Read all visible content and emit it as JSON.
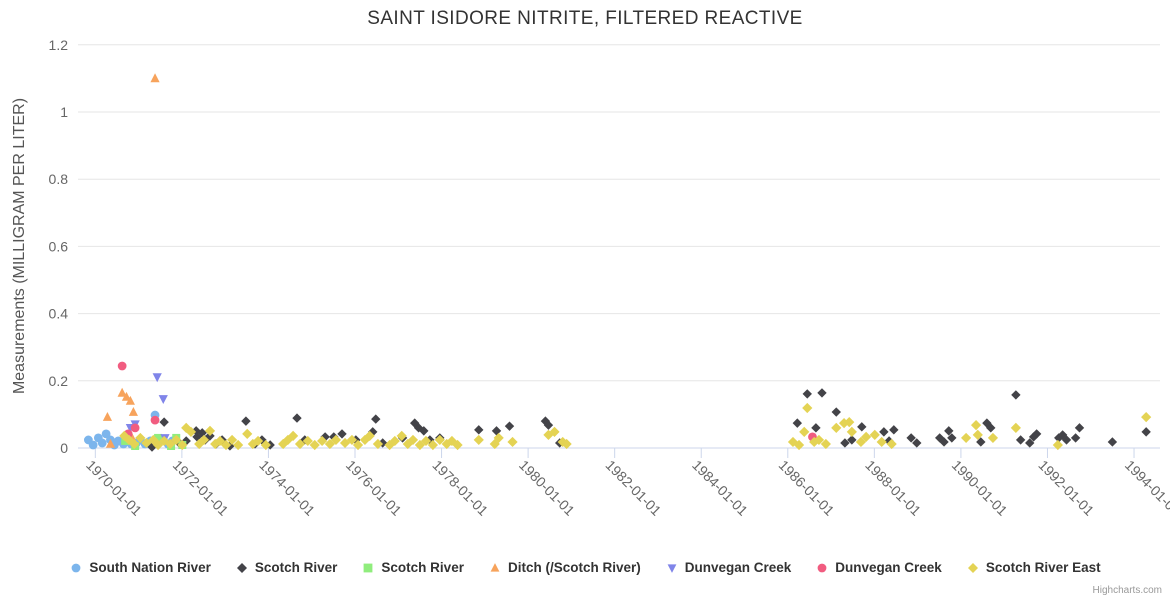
{
  "title": "SAINT ISIDORE NITRITE, FILTERED REACTIVE",
  "credits": "Highcharts.com",
  "y_axis": {
    "title": "Measurements (MILLIGRAM PER LITER)",
    "tick_labels": [
      "0",
      "0.2",
      "0.4",
      "0.6",
      "0.8",
      "1",
      "1.2"
    ],
    "tick_values": [
      0,
      0.2,
      0.4,
      0.6,
      0.8,
      1,
      1.2
    ],
    "min": 0,
    "max": 1.2
  },
  "x_axis": {
    "tick_labels": [
      "1970-01-01",
      "1972-01-01",
      "1974-01-01",
      "1976-01-01",
      "1978-01-01",
      "1980-01-01",
      "1982-01-01",
      "1984-01-01",
      "1986-01-01",
      "1988-01-01",
      "1990-01-01",
      "1992-01-01",
      "1994-01-01"
    ],
    "tick_years": [
      1970,
      1972,
      1974,
      1976,
      1978,
      1980,
      1982,
      1984,
      1986,
      1988,
      1990,
      1992,
      1994
    ]
  },
  "colors": {
    "axis_line": "#ccd6eb",
    "grid_line": "#e6e6e6",
    "tick_label": "#666666",
    "title_text": "#333333"
  },
  "legend": {
    "items": [
      {
        "label": "South Nation River",
        "marker": "circle",
        "color": "#7cb5ec"
      },
      {
        "label": "Scotch River",
        "marker": "diamond",
        "color": "#434348"
      },
      {
        "label": "Scotch River",
        "marker": "square",
        "color": "#90ed7d"
      },
      {
        "label": "Ditch (/Scotch River)",
        "marker": "triangle",
        "color": "#f7a35c"
      },
      {
        "label": "Dunvegan Creek",
        "marker": "triangle-down",
        "color": "#8085e9"
      },
      {
        "label": "Dunvegan Creek",
        "marker": "circle",
        "color": "#f15c80"
      },
      {
        "label": "Scotch River East",
        "marker": "diamond",
        "color": "#e4d354"
      }
    ]
  },
  "chart_data": {
    "type": "scatter",
    "title": "SAINT ISIDORE NITRITE, FILTERED REACTIVE",
    "xlabel": "",
    "ylabel": "Measurements (MILLIGRAM PER LITER)",
    "x_unit": "decimal_year",
    "xlim": [
      1969.6,
      1994.6
    ],
    "ylim": [
      0,
      1.2
    ],
    "grid": "horizontal",
    "legend_position": "bottom",
    "series": [
      {
        "name": "South Nation River",
        "marker": "circle",
        "color": "#7cb5ec",
        "size": 4.4,
        "points": [
          [
            1969.84,
            0.024
          ],
          [
            1969.95,
            0.009
          ],
          [
            1970.07,
            0.03
          ],
          [
            1970.16,
            0.015
          ],
          [
            1970.25,
            0.042
          ],
          [
            1970.35,
            0.024
          ],
          [
            1970.44,
            0.009
          ],
          [
            1970.53,
            0.021
          ],
          [
            1970.65,
            0.012
          ],
          [
            1970.74,
            0.027
          ],
          [
            1970.83,
            0.012
          ],
          [
            1970.95,
            0.015
          ],
          [
            1971.04,
            0.024
          ],
          [
            1971.15,
            0.012
          ],
          [
            1971.27,
            0.021
          ],
          [
            1971.38,
            0.098
          ],
          [
            1971.45,
            0.015
          ],
          [
            1971.57,
            0.024
          ],
          [
            1971.68,
            0.012
          ],
          [
            1971.78,
            0.021
          ]
        ]
      },
      {
        "name": "Scotch River",
        "marker": "diamond",
        "color": "#434348",
        "size": 4.1,
        "points": [
          [
            1971.31,
            0.003
          ],
          [
            1971.59,
            0.077
          ],
          [
            1971.96,
            0.012
          ],
          [
            1972.1,
            0.021
          ],
          [
            1972.33,
            0.051
          ],
          [
            1972.35,
            0.033
          ],
          [
            1972.47,
            0.045
          ],
          [
            1972.54,
            0.024
          ],
          [
            1972.65,
            0.036
          ],
          [
            1972.79,
            0.012
          ],
          [
            1972.93,
            0.024
          ],
          [
            1973.11,
            0.006
          ],
          [
            1973.48,
            0.08
          ],
          [
            1973.69,
            0.012
          ],
          [
            1973.85,
            0.024
          ],
          [
            1974.04,
            0.009
          ],
          [
            1974.66,
            0.089
          ],
          [
            1974.84,
            0.024
          ],
          [
            1975.31,
            0.033
          ],
          [
            1975.51,
            0.033
          ],
          [
            1975.7,
            0.042
          ],
          [
            1976.02,
            0.024
          ],
          [
            1976.41,
            0.048
          ],
          [
            1976.48,
            0.086
          ],
          [
            1976.64,
            0.015
          ],
          [
            1977.1,
            0.03
          ],
          [
            1977.38,
            0.074
          ],
          [
            1977.47,
            0.06
          ],
          [
            1977.59,
            0.051
          ],
          [
            1977.73,
            0.024
          ],
          [
            1977.96,
            0.03
          ],
          [
            1978.86,
            0.054
          ],
          [
            1979.27,
            0.051
          ],
          [
            1979.57,
            0.065
          ],
          [
            1980.4,
            0.08
          ],
          [
            1980.47,
            0.068
          ],
          [
            1980.73,
            0.015
          ],
          [
            1986.22,
            0.074
          ],
          [
            1986.45,
            0.161
          ],
          [
            1986.65,
            0.06
          ],
          [
            1986.79,
            0.164
          ],
          [
            1987.12,
            0.107
          ],
          [
            1987.32,
            0.015
          ],
          [
            1987.48,
            0.024
          ],
          [
            1987.71,
            0.063
          ],
          [
            1988.22,
            0.048
          ],
          [
            1988.34,
            0.021
          ],
          [
            1988.45,
            0.054
          ],
          [
            1988.85,
            0.03
          ],
          [
            1988.98,
            0.015
          ],
          [
            1989.51,
            0.03
          ],
          [
            1989.61,
            0.018
          ],
          [
            1989.72,
            0.051
          ],
          [
            1989.79,
            0.03
          ],
          [
            1990.46,
            0.018
          ],
          [
            1990.6,
            0.074
          ],
          [
            1990.69,
            0.06
          ],
          [
            1991.27,
            0.158
          ],
          [
            1991.38,
            0.024
          ],
          [
            1991.59,
            0.015
          ],
          [
            1991.68,
            0.033
          ],
          [
            1991.75,
            0.042
          ],
          [
            1992.26,
            0.03
          ],
          [
            1992.35,
            0.039
          ],
          [
            1992.44,
            0.024
          ],
          [
            1992.65,
            0.03
          ],
          [
            1992.74,
            0.06
          ],
          [
            1993.5,
            0.018
          ],
          [
            1994.28,
            0.048
          ]
        ]
      },
      {
        "name": "Scotch River",
        "marker": "square",
        "color": "#90ed7d",
        "size": 4.0,
        "points": [
          [
            1970.69,
            0.021
          ],
          [
            1970.92,
            0.006
          ],
          [
            1971.45,
            0.03
          ],
          [
            1971.75,
            0.006
          ],
          [
            1971.87,
            0.03
          ],
          [
            1972.01,
            0.009
          ]
        ]
      },
      {
        "name": "Ditch (/Scotch River)",
        "marker": "triangle",
        "color": "#f7a35c",
        "size": 4.6,
        "points": [
          [
            1970.28,
            0.092
          ],
          [
            1970.35,
            0.012
          ],
          [
            1970.62,
            0.164
          ],
          [
            1970.72,
            0.152
          ],
          [
            1970.81,
            0.14
          ],
          [
            1970.85,
            0.03
          ],
          [
            1970.88,
            0.107
          ],
          [
            1971.38,
            1.1
          ]
        ]
      },
      {
        "name": "Dunvegan Creek",
        "marker": "triangle-down",
        "color": "#8085e9",
        "size": 4.6,
        "points": [
          [
            1970.81,
            0.06
          ],
          [
            1970.92,
            0.071
          ],
          [
            1971.43,
            0.211
          ],
          [
            1971.57,
            0.146
          ],
          [
            1971.61,
            0.03
          ],
          [
            1971.73,
            0.012
          ]
        ]
      },
      {
        "name": "Dunvegan Creek",
        "marker": "circle",
        "color": "#f15c80",
        "size": 4.4,
        "points": [
          [
            1970.62,
            0.244
          ],
          [
            1970.76,
            0.042
          ],
          [
            1970.92,
            0.06
          ],
          [
            1971.38,
            0.083
          ],
          [
            1986.57,
            0.033
          ]
        ]
      },
      {
        "name": "Scotch River East",
        "marker": "diamond",
        "color": "#e4d354",
        "size": 4.5,
        "points": [
          [
            1970.67,
            0.036
          ],
          [
            1970.78,
            0.024
          ],
          [
            1970.9,
            0.012
          ],
          [
            1971.04,
            0.03
          ],
          [
            1971.18,
            0.015
          ],
          [
            1971.34,
            0.024
          ],
          [
            1971.45,
            0.009
          ],
          [
            1971.59,
            0.021
          ],
          [
            1971.73,
            0.012
          ],
          [
            1971.87,
            0.024
          ],
          [
            1972.01,
            0.009
          ],
          [
            1972.1,
            0.06
          ],
          [
            1972.21,
            0.048
          ],
          [
            1972.4,
            0.012
          ],
          [
            1972.51,
            0.024
          ],
          [
            1972.65,
            0.051
          ],
          [
            1972.77,
            0.012
          ],
          [
            1972.88,
            0.021
          ],
          [
            1973.02,
            0.009
          ],
          [
            1973.16,
            0.024
          ],
          [
            1973.3,
            0.009
          ],
          [
            1973.51,
            0.042
          ],
          [
            1973.64,
            0.012
          ],
          [
            1973.76,
            0.021
          ],
          [
            1973.94,
            0.009
          ],
          [
            1974.34,
            0.012
          ],
          [
            1974.45,
            0.024
          ],
          [
            1974.57,
            0.036
          ],
          [
            1974.73,
            0.012
          ],
          [
            1974.91,
            0.021
          ],
          [
            1975.07,
            0.009
          ],
          [
            1975.24,
            0.021
          ],
          [
            1975.42,
            0.012
          ],
          [
            1975.56,
            0.024
          ],
          [
            1975.77,
            0.015
          ],
          [
            1975.93,
            0.024
          ],
          [
            1976.07,
            0.009
          ],
          [
            1976.23,
            0.024
          ],
          [
            1976.34,
            0.036
          ],
          [
            1976.53,
            0.012
          ],
          [
            1976.8,
            0.009
          ],
          [
            1976.92,
            0.021
          ],
          [
            1977.08,
            0.036
          ],
          [
            1977.22,
            0.012
          ],
          [
            1977.34,
            0.024
          ],
          [
            1977.5,
            0.009
          ],
          [
            1977.64,
            0.021
          ],
          [
            1977.8,
            0.009
          ],
          [
            1977.96,
            0.024
          ],
          [
            1978.12,
            0.012
          ],
          [
            1978.24,
            0.021
          ],
          [
            1978.37,
            0.009
          ],
          [
            1978.86,
            0.024
          ],
          [
            1979.23,
            0.012
          ],
          [
            1979.32,
            0.03
          ],
          [
            1979.64,
            0.018
          ],
          [
            1980.47,
            0.039
          ],
          [
            1980.61,
            0.048
          ],
          [
            1980.8,
            0.018
          ],
          [
            1980.89,
            0.012
          ],
          [
            1986.12,
            0.018
          ],
          [
            1986.26,
            0.009
          ],
          [
            1986.38,
            0.048
          ],
          [
            1986.45,
            0.119
          ],
          [
            1986.61,
            0.018
          ],
          [
            1986.72,
            0.024
          ],
          [
            1986.88,
            0.012
          ],
          [
            1987.12,
            0.06
          ],
          [
            1987.3,
            0.074
          ],
          [
            1987.42,
            0.077
          ],
          [
            1987.48,
            0.048
          ],
          [
            1987.69,
            0.018
          ],
          [
            1987.81,
            0.033
          ],
          [
            1988.01,
            0.039
          ],
          [
            1988.17,
            0.018
          ],
          [
            1988.4,
            0.012
          ],
          [
            1990.12,
            0.03
          ],
          [
            1990.35,
            0.068
          ],
          [
            1990.39,
            0.039
          ],
          [
            1990.74,
            0.03
          ],
          [
            1991.27,
            0.06
          ],
          [
            1992.24,
            0.009
          ],
          [
            1994.28,
            0.092
          ]
        ]
      }
    ]
  }
}
